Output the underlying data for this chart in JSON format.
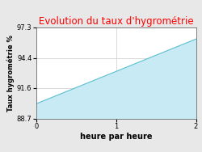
{
  "title": "Evolution du taux d'hygrométrie",
  "title_color": "#ff0000",
  "xlabel": "heure par heure",
  "ylabel": "Taux hygrométrie %",
  "x_data": [
    0,
    2
  ],
  "y_data": [
    90.1,
    96.2
  ],
  "y_fill_base": 88.7,
  "fill_color": "#c8eaf5",
  "fill_alpha": 1.0,
  "line_color": "#5bbfcf",
  "line_width": 0.8,
  "ylim": [
    88.7,
    97.3
  ],
  "xlim": [
    0,
    2
  ],
  "yticks": [
    88.7,
    91.6,
    94.4,
    97.3
  ],
  "xticks": [
    0,
    1,
    2
  ],
  "grid_color": "#cccccc",
  "outer_bg_color": "#e8e8e8",
  "inner_bg_color": "#ffffff",
  "title_fontsize": 8.5,
  "xlabel_fontsize": 7,
  "ylabel_fontsize": 6,
  "tick_fontsize": 6
}
